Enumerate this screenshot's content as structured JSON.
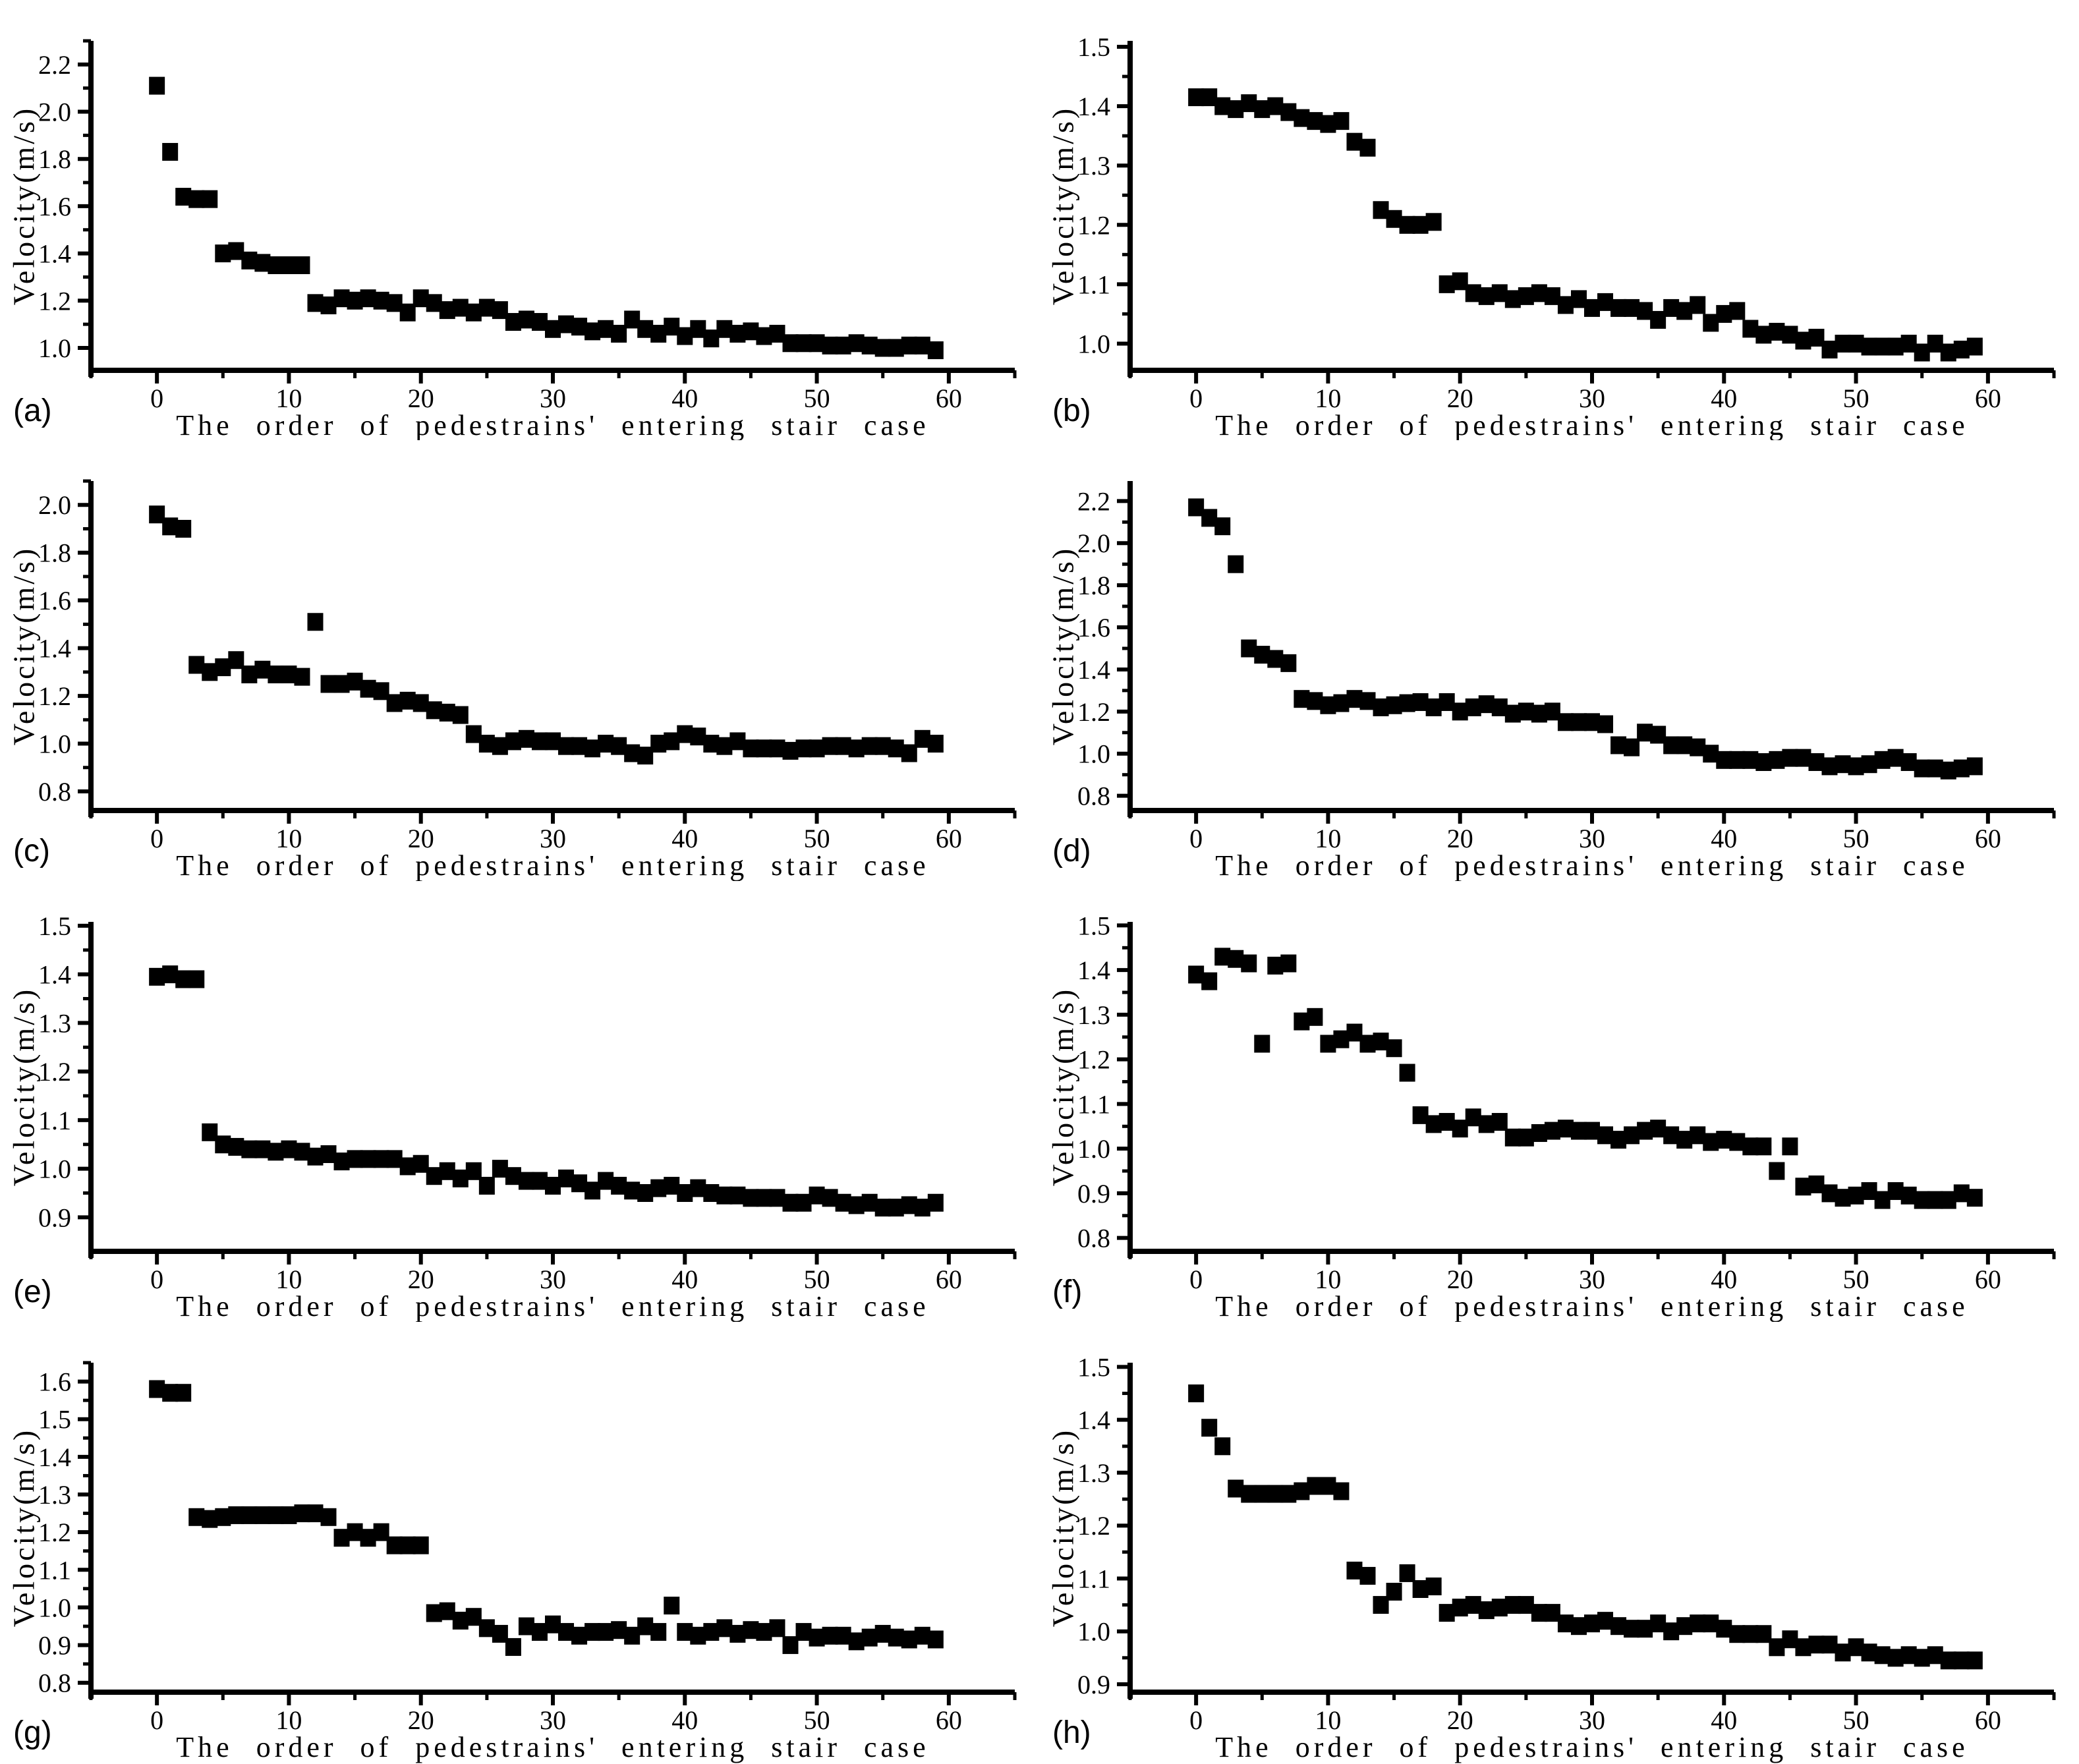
{
  "figure": {
    "background": "#ffffff",
    "marker_color": "#000000",
    "axis_color": "#000000",
    "layout": "4 rows x 2 columns of scatter subplots"
  },
  "chart_data": [
    {
      "id": "a",
      "label": "(a)",
      "type": "scatter",
      "marker": "square",
      "color": "#000000",
      "xlabel": "The order of pedestrains' entering stair case",
      "ylabel": "Velocity(m/s)",
      "xlim": [
        -5,
        65
      ],
      "ylim": [
        0.905,
        2.3
      ],
      "xticks": [
        0,
        10,
        20,
        30,
        40,
        50,
        60
      ],
      "x_minor_step": 5,
      "yticks": [
        1.0,
        1.2,
        1.4,
        1.6,
        1.8,
        2.0,
        2.2
      ],
      "x_start": 0,
      "x_step": 1,
      "n": 60,
      "y": [
        2.11,
        1.83,
        1.64,
        1.63,
        1.63,
        1.4,
        1.41,
        1.37,
        1.36,
        1.35,
        1.35,
        1.35,
        1.19,
        1.18,
        1.21,
        1.2,
        1.21,
        1.2,
        1.19,
        1.15,
        1.21,
        1.19,
        1.16,
        1.17,
        1.15,
        1.17,
        1.16,
        1.11,
        1.12,
        1.11,
        1.08,
        1.1,
        1.09,
        1.07,
        1.08,
        1.06,
        1.12,
        1.08,
        1.06,
        1.09,
        1.05,
        1.08,
        1.04,
        1.08,
        1.06,
        1.07,
        1.05,
        1.06,
        1.02,
        1.02,
        1.02,
        1.01,
        1.01,
        1.02,
        1.01,
        1.0,
        1.0,
        1.01,
        1.01,
        0.99
      ]
    },
    {
      "id": "b",
      "label": "(b)",
      "type": "scatter",
      "marker": "square",
      "color": "#000000",
      "xlabel": "The order of pedestrains' entering stair case",
      "ylabel": "Velocity(m/s)",
      "xlim": [
        -5,
        65
      ],
      "ylim": [
        0.955,
        1.51
      ],
      "xticks": [
        0,
        10,
        20,
        30,
        40,
        50,
        60
      ],
      "x_minor_step": 5,
      "yticks": [
        1.0,
        1.1,
        1.2,
        1.3,
        1.4,
        1.5
      ],
      "x_start": 0,
      "x_step": 1,
      "n": 60,
      "y": [
        1.415,
        1.415,
        1.4,
        1.395,
        1.405,
        1.395,
        1.4,
        1.39,
        1.38,
        1.375,
        1.37,
        1.375,
        1.34,
        1.33,
        1.225,
        1.21,
        1.2,
        1.2,
        1.205,
        1.1,
        1.105,
        1.085,
        1.08,
        1.085,
        1.075,
        1.08,
        1.085,
        1.08,
        1.065,
        1.075,
        1.06,
        1.07,
        1.06,
        1.06,
        1.055,
        1.04,
        1.06,
        1.055,
        1.065,
        1.035,
        1.05,
        1.055,
        1.025,
        1.015,
        1.02,
        1.015,
        1.005,
        1.01,
        0.99,
        1.0,
        1.0,
        0.995,
        0.995,
        0.995,
        1.0,
        0.985,
        1.0,
        0.985,
        0.99,
        0.995
      ]
    },
    {
      "id": "c",
      "label": "(c)",
      "type": "scatter",
      "marker": "square",
      "color": "#000000",
      "xlabel": "The order of pedestrains' entering stair case",
      "ylabel": "Velocity(m/s)",
      "xlim": [
        -5,
        65
      ],
      "ylim": [
        0.72,
        2.1
      ],
      "xticks": [
        0,
        10,
        20,
        30,
        40,
        50,
        60
      ],
      "x_minor_step": 5,
      "yticks": [
        0.8,
        1.0,
        1.2,
        1.4,
        1.6,
        1.8,
        2.0
      ],
      "x_start": 0,
      "x_step": 1,
      "n": 60,
      "y": [
        1.96,
        1.91,
        1.9,
        1.33,
        1.3,
        1.32,
        1.35,
        1.29,
        1.31,
        1.29,
        1.29,
        1.28,
        1.51,
        1.25,
        1.25,
        1.26,
        1.23,
        1.22,
        1.17,
        1.18,
        1.17,
        1.14,
        1.13,
        1.12,
        1.04,
        1.0,
        0.99,
        1.01,
        1.02,
        1.01,
        1.01,
        0.99,
        0.99,
        0.98,
        1.0,
        0.99,
        0.96,
        0.95,
        1.0,
        1.01,
        1.04,
        1.03,
        1.0,
        0.99,
        1.01,
        0.98,
        0.98,
        0.98,
        0.97,
        0.98,
        0.98,
        0.99,
        0.99,
        0.98,
        0.99,
        0.99,
        0.98,
        0.96,
        1.02,
        1.0
      ]
    },
    {
      "id": "d",
      "label": "(d)",
      "type": "scatter",
      "marker": "square",
      "color": "#000000",
      "xlabel": "The order of pedestrains' entering stair case",
      "ylabel": "Velocity(m/s)",
      "xlim": [
        -5,
        65
      ],
      "ylim": [
        0.73,
        2.295
      ],
      "xticks": [
        0,
        10,
        20,
        30,
        40,
        50,
        60
      ],
      "x_minor_step": 5,
      "yticks": [
        0.8,
        1.0,
        1.2,
        1.4,
        1.6,
        1.8,
        2.0,
        2.2
      ],
      "x_start": 0,
      "x_step": 1,
      "n": 60,
      "y": [
        2.17,
        2.12,
        2.08,
        1.9,
        1.5,
        1.47,
        1.45,
        1.43,
        1.26,
        1.25,
        1.23,
        1.24,
        1.26,
        1.25,
        1.22,
        1.23,
        1.24,
        1.245,
        1.22,
        1.245,
        1.2,
        1.22,
        1.235,
        1.22,
        1.19,
        1.2,
        1.19,
        1.2,
        1.15,
        1.15,
        1.15,
        1.14,
        1.04,
        1.03,
        1.1,
        1.09,
        1.04,
        1.04,
        1.03,
        1.0,
        0.97,
        0.97,
        0.97,
        0.96,
        0.97,
        0.98,
        0.98,
        0.96,
        0.94,
        0.95,
        0.94,
        0.95,
        0.97,
        0.98,
        0.96,
        0.93,
        0.93,
        0.92,
        0.93,
        0.94
      ]
    },
    {
      "id": "e",
      "label": "(e)",
      "type": "scatter",
      "marker": "square",
      "color": "#000000",
      "xlabel": "The order of pedestrains' entering stair case",
      "ylabel": "Velocity(m/s)",
      "xlim": [
        -5,
        65
      ],
      "ylim": [
        0.83,
        1.508
      ],
      "xticks": [
        0,
        10,
        20,
        30,
        40,
        50,
        60
      ],
      "x_minor_step": 5,
      "yticks": [
        0.9,
        1.0,
        1.1,
        1.2,
        1.3,
        1.4,
        1.5
      ],
      "x_start": 0,
      "x_step": 1,
      "n": 60,
      "y": [
        1.395,
        1.4,
        1.39,
        1.39,
        1.075,
        1.05,
        1.045,
        1.04,
        1.04,
        1.035,
        1.04,
        1.035,
        1.025,
        1.03,
        1.015,
        1.02,
        1.02,
        1.02,
        1.02,
        1.005,
        1.01,
        0.985,
        0.995,
        0.98,
        0.995,
        0.965,
        1.0,
        0.985,
        0.975,
        0.975,
        0.965,
        0.98,
        0.97,
        0.955,
        0.975,
        0.965,
        0.955,
        0.95,
        0.96,
        0.965,
        0.95,
        0.96,
        0.95,
        0.945,
        0.945,
        0.94,
        0.94,
        0.94,
        0.93,
        0.93,
        0.945,
        0.94,
        0.93,
        0.925,
        0.93,
        0.92,
        0.92,
        0.925,
        0.92,
        0.93
      ]
    },
    {
      "id": "f",
      "label": "(f)",
      "type": "scatter",
      "marker": "square",
      "color": "#000000",
      "xlabel": "The order of pedestrains' entering stair case",
      "ylabel": "Velocity(m/s)",
      "xlim": [
        -5,
        65
      ],
      "ylim": [
        0.77,
        1.508
      ],
      "xticks": [
        0,
        10,
        20,
        30,
        40,
        50,
        60
      ],
      "x_minor_step": 5,
      "yticks": [
        0.8,
        0.9,
        1.0,
        1.1,
        1.2,
        1.3,
        1.4,
        1.5
      ],
      "x_start": 0,
      "x_step": 1,
      "n": 60,
      "y": [
        1.39,
        1.375,
        1.43,
        1.425,
        1.415,
        1.235,
        1.41,
        1.415,
        1.285,
        1.295,
        1.235,
        1.245,
        1.26,
        1.235,
        1.24,
        1.225,
        1.17,
        1.075,
        1.055,
        1.06,
        1.045,
        1.07,
        1.055,
        1.06,
        1.025,
        1.025,
        1.035,
        1.04,
        1.045,
        1.04,
        1.04,
        1.03,
        1.02,
        1.03,
        1.04,
        1.045,
        1.03,
        1.02,
        1.03,
        1.015,
        1.02,
        1.015,
        1.005,
        1.005,
        0.95,
        1.005,
        0.915,
        0.92,
        0.9,
        0.89,
        0.895,
        0.905,
        0.885,
        0.905,
        0.895,
        0.885,
        0.885,
        0.885,
        0.9,
        0.89
      ]
    },
    {
      "id": "g",
      "label": "(g)",
      "type": "scatter",
      "marker": "square",
      "color": "#000000",
      "xlabel": "The order of pedestrains' entering stair case",
      "ylabel": "Velocity(m/s)",
      "xlim": [
        -5,
        65
      ],
      "ylim": [
        0.775,
        1.65
      ],
      "xticks": [
        0,
        10,
        20,
        30,
        40,
        50,
        60
      ],
      "x_minor_step": 5,
      "yticks": [
        0.8,
        0.9,
        1.0,
        1.1,
        1.2,
        1.3,
        1.4,
        1.5,
        1.6
      ],
      "x_start": 0,
      "x_step": 1,
      "n": 60,
      "y": [
        1.58,
        1.57,
        1.57,
        1.24,
        1.235,
        1.24,
        1.245,
        1.245,
        1.245,
        1.245,
        1.245,
        1.25,
        1.25,
        1.24,
        1.185,
        1.2,
        1.185,
        1.2,
        1.165,
        1.165,
        1.165,
        0.985,
        0.99,
        0.965,
        0.975,
        0.945,
        0.93,
        0.895,
        0.95,
        0.935,
        0.955,
        0.935,
        0.925,
        0.935,
        0.935,
        0.94,
        0.925,
        0.95,
        0.935,
        1.005,
        0.935,
        0.925,
        0.935,
        0.945,
        0.93,
        0.94,
        0.935,
        0.945,
        0.9,
        0.935,
        0.92,
        0.925,
        0.925,
        0.91,
        0.92,
        0.93,
        0.92,
        0.915,
        0.925,
        0.915
      ]
    },
    {
      "id": "h",
      "label": "(h)",
      "type": "scatter",
      "marker": "square",
      "color": "#000000",
      "xlabel": "The order of pedestrains' entering stair case",
      "ylabel": "Velocity(m/s)",
      "xlim": [
        -5,
        65
      ],
      "ylim": [
        0.885,
        1.508
      ],
      "xticks": [
        0,
        10,
        20,
        30,
        40,
        50,
        60
      ],
      "x_minor_step": 5,
      "yticks": [
        0.9,
        1.0,
        1.1,
        1.2,
        1.3,
        1.4,
        1.5
      ],
      "x_start": 0,
      "x_step": 1,
      "n": 60,
      "y": [
        1.45,
        1.385,
        1.35,
        1.27,
        1.26,
        1.26,
        1.26,
        1.26,
        1.265,
        1.275,
        1.275,
        1.265,
        1.115,
        1.105,
        1.05,
        1.075,
        1.11,
        1.08,
        1.085,
        1.035,
        1.045,
        1.05,
        1.04,
        1.045,
        1.05,
        1.05,
        1.035,
        1.035,
        1.015,
        1.01,
        1.015,
        1.02,
        1.01,
        1.005,
        1.005,
        1.015,
        1.0,
        1.01,
        1.015,
        1.015,
        1.005,
        0.995,
        0.995,
        0.995,
        0.97,
        0.985,
        0.97,
        0.975,
        0.975,
        0.96,
        0.97,
        0.96,
        0.955,
        0.95,
        0.955,
        0.95,
        0.955,
        0.945,
        0.945,
        0.945
      ]
    }
  ]
}
